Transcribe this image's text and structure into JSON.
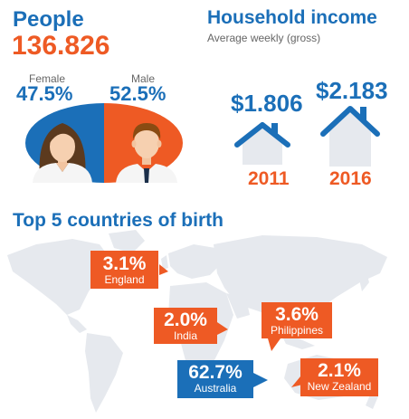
{
  "people": {
    "title": "People",
    "count": "136.826",
    "female_label": "Female",
    "male_label": "Male",
    "female_pct": "47.5%",
    "male_pct": "52.5%"
  },
  "income": {
    "title": "Household income",
    "subtitle": "Average weekly (gross)",
    "values": [
      {
        "year": "2011",
        "amount": "$1.806"
      },
      {
        "year": "2016",
        "amount": "$2.183"
      }
    ]
  },
  "countries": {
    "title": "Top 5 countries of birth",
    "items": [
      {
        "pct": "3.1%",
        "name": "England"
      },
      {
        "pct": "2.0%",
        "name": "India"
      },
      {
        "pct": "3.6%",
        "name": "Philippines"
      },
      {
        "pct": "62.7%",
        "name": "Australia"
      },
      {
        "pct": "2.1%",
        "name": "New Zealand"
      }
    ]
  },
  "colors": {
    "blue": "#1b6fb8",
    "orange": "#ee5a24",
    "map_gray": "#e6e9ee"
  },
  "icons": [
    "female-avatar-icon",
    "male-avatar-icon",
    "house-icon",
    "world-map-icon"
  ]
}
